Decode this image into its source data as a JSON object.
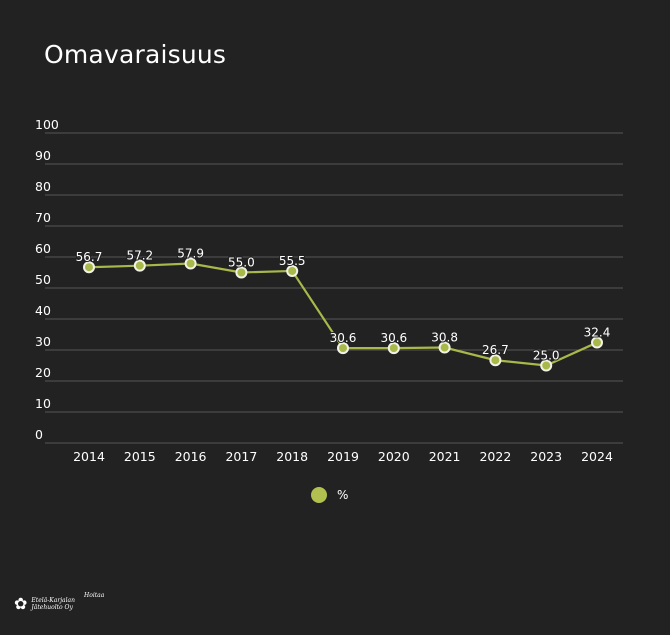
{
  "title": "Omavaraisuus",
  "legend": {
    "label": "%",
    "color": "#b2c050"
  },
  "logo": {
    "line1": "Etelä-Karjalan",
    "line2": "Jätehuolto Oy",
    "script": "Hoitaa"
  },
  "colors": {
    "background": "#222222",
    "line": "#a8b84a",
    "marker_fill": "#a8b84a",
    "marker_stroke": "#f2f2e6",
    "grid": "#555555",
    "text": "#ffffff"
  },
  "chart_data": {
    "type": "line",
    "title": "Omavaraisuus",
    "xlabel": "",
    "ylabel": "",
    "categories": [
      "2014",
      "2015",
      "2016",
      "2017",
      "2018",
      "2019",
      "2020",
      "2021",
      "2022",
      "2023",
      "2024"
    ],
    "series": [
      {
        "name": "%",
        "values": [
          56.7,
          57.2,
          57.9,
          55.0,
          55.5,
          30.6,
          30.6,
          30.8,
          26.7,
          25.0,
          32.4
        ]
      }
    ],
    "data_labels": [
      "56.7",
      "57.2",
      "57.9",
      "55.0",
      "55.5",
      "30.6",
      "30.6",
      "30.8",
      "26.7",
      "25.0",
      "32.4"
    ],
    "ylim": [
      0,
      100
    ],
    "yticks": [
      0,
      10,
      20,
      30,
      40,
      50,
      60,
      70,
      80,
      90,
      100
    ],
    "grid": true,
    "legend_position": "bottom"
  }
}
